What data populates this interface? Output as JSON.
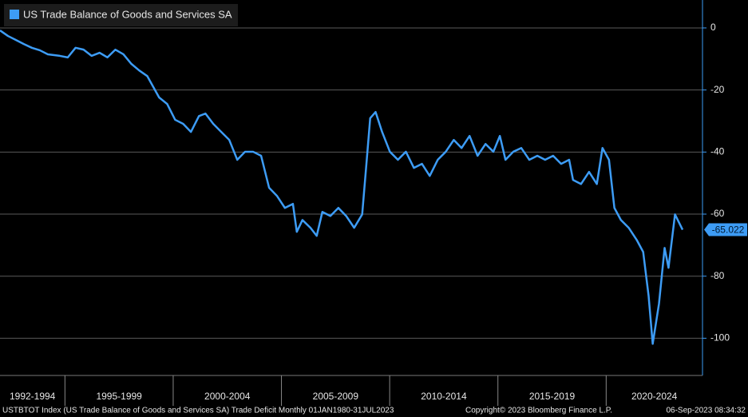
{
  "chart_data": {
    "type": "line",
    "legend": "US Trade Balance of Goods and Services SA",
    "period_labels": [
      "1992-1994",
      "1995-1999",
      "2000-2004",
      "2005-2009",
      "2010-2014",
      "2015-2019",
      "2020-2024"
    ],
    "xlim": [
      1992,
      2024.45
    ],
    "xticks": [
      1995,
      2000,
      2005,
      2010,
      2015,
      2020
    ],
    "ylim": [
      -112,
      9
    ],
    "yticks": [
      0,
      -20,
      -40,
      -60,
      -80,
      -100
    ],
    "grid": true,
    "series": [
      {
        "name": "US Trade Balance of Goods and Services SA",
        "color": "#3d9cf5",
        "x": [
          1992.0,
          1992.37,
          1992.74,
          1993.1,
          1993.47,
          1993.84,
          1994.21,
          1994.76,
          1995.13,
          1995.49,
          1995.86,
          1996.23,
          1996.6,
          1996.96,
          1997.33,
          1997.7,
          1998.07,
          1998.43,
          1998.8,
          1999.35,
          1999.72,
          2000.09,
          2000.46,
          2000.82,
          2001.19,
          2001.49,
          2001.85,
          2002.22,
          2002.59,
          2002.96,
          2003.32,
          2003.69,
          2004.06,
          2004.43,
          2004.79,
          2005.16,
          2005.53,
          2005.71,
          2005.97,
          2006.34,
          2006.63,
          2006.89,
          2007.26,
          2007.63,
          2007.99,
          2008.36,
          2008.73,
          2008.91,
          2009.1,
          2009.35,
          2009.65,
          2010.01,
          2010.38,
          2010.75,
          2011.12,
          2011.49,
          2011.85,
          2012.22,
          2012.59,
          2012.96,
          2013.32,
          2013.69,
          2014.06,
          2014.43,
          2014.79,
          2015.09,
          2015.35,
          2015.71,
          2016.08,
          2016.45,
          2016.82,
          2017.18,
          2017.55,
          2017.92,
          2018.29,
          2018.47,
          2018.84,
          2019.21,
          2019.57,
          2019.83,
          2020.13,
          2020.38,
          2020.68,
          2021.04,
          2021.41,
          2021.71,
          2021.96,
          2022.15,
          2022.44,
          2022.7,
          2022.88,
          2023.18,
          2023.53
        ],
        "values": [
          -0.8,
          -2.6,
          -3.9,
          -5.2,
          -6.4,
          -7.2,
          -8.5,
          -9.0,
          -9.5,
          -6.4,
          -7.0,
          -9.0,
          -8.0,
          -9.5,
          -7.0,
          -8.5,
          -11.6,
          -13.7,
          -15.5,
          -22.4,
          -24.5,
          -29.6,
          -30.9,
          -33.5,
          -28.4,
          -27.6,
          -30.9,
          -33.5,
          -36.1,
          -42.5,
          -39.9,
          -39.9,
          -41.2,
          -51.5,
          -54.1,
          -58.0,
          -56.7,
          -65.7,
          -61.9,
          -64.4,
          -67.0,
          -59.3,
          -60.6,
          -58.0,
          -60.6,
          -64.4,
          -60.1,
          -45.1,
          -29.1,
          -27.1,
          -33.5,
          -39.9,
          -42.5,
          -39.9,
          -45.1,
          -43.8,
          -47.7,
          -42.5,
          -39.9,
          -36.1,
          -38.7,
          -34.8,
          -41.2,
          -37.4,
          -39.9,
          -34.8,
          -42.5,
          -39.9,
          -38.7,
          -42.5,
          -41.2,
          -42.5,
          -41.2,
          -43.8,
          -42.5,
          -49.0,
          -50.3,
          -46.4,
          -50.3,
          -38.7,
          -42.5,
          -58.0,
          -61.9,
          -64.4,
          -68.3,
          -72.2,
          -86.3,
          -101.8,
          -88.9,
          -70.9,
          -77.3,
          -60.1,
          -65.022
        ]
      }
    ],
    "footer": {
      "source": "USTBTOT Index (US Trade Balance of Goods and Services SA) Trade Deficit  Monthly 01JAN1980-31JUL2023",
      "copyright": "Copyright© 2023 Bloomberg Finance L.P.",
      "timestamp": "06-Sep-2023 08:34:32"
    }
  }
}
